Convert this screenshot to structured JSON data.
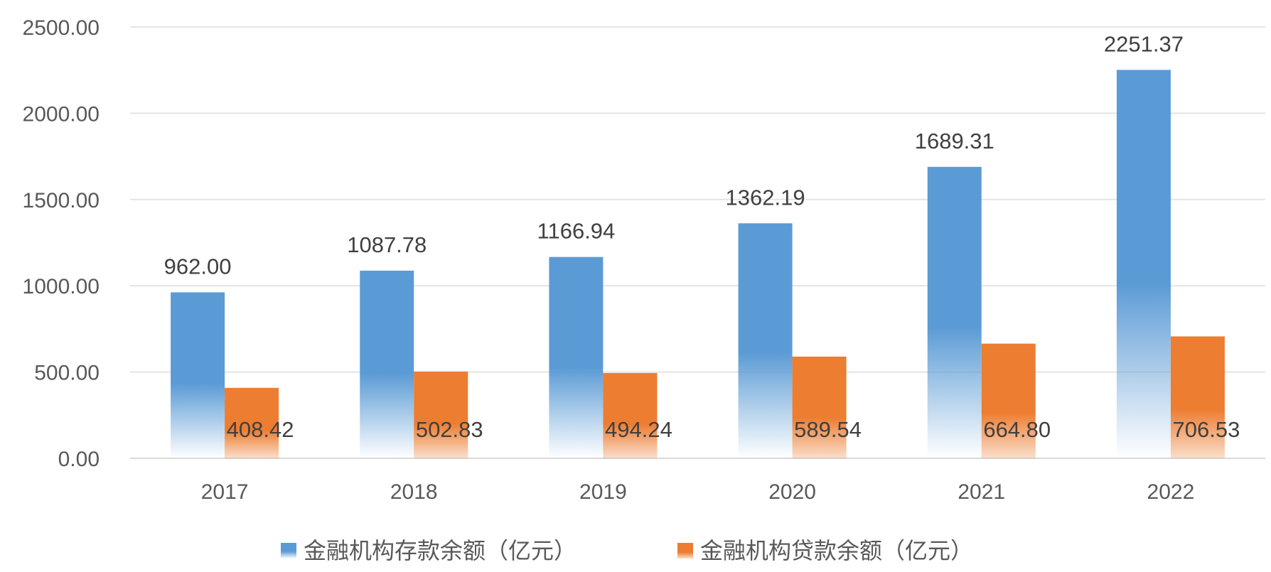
{
  "chart_data": {
    "type": "bar",
    "categories": [
      "2017",
      "2018",
      "2019",
      "2020",
      "2021",
      "2022"
    ],
    "series": [
      {
        "name": "金融机构存款余额（亿元）",
        "values": [
          962.0,
          1087.78,
          1166.94,
          1362.19,
          1689.31,
          2251.37
        ],
        "labels": [
          "962.00",
          "1087.78",
          "1166.94",
          "1362.19",
          "1689.31",
          "2251.37"
        ],
        "color": "#5B9BD5"
      },
      {
        "name": "金融机构贷款余额（亿元）",
        "values": [
          408.42,
          502.83,
          494.24,
          589.54,
          664.8,
          706.53
        ],
        "labels": [
          "408.42",
          "502.83",
          "494.24",
          "589.54",
          "664.80",
          "706.53"
        ],
        "color": "#ED7D31"
      }
    ],
    "yticks": [
      "0.00",
      "500.00",
      "1000.00",
      "1500.00",
      "2000.00",
      "2500.00"
    ],
    "ylim": [
      0,
      2500
    ],
    "grid": true,
    "legend": "bottom",
    "xlabel": "",
    "ylabel": "",
    "title": ""
  }
}
